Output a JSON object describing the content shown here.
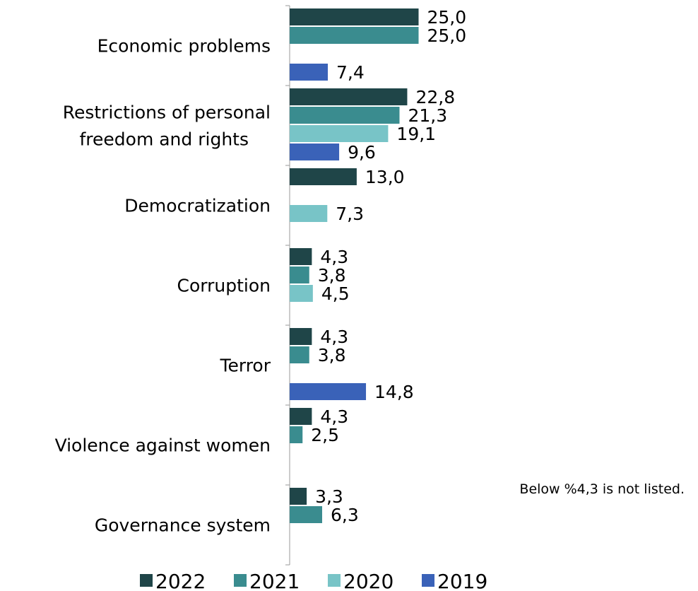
{
  "chart_data": {
    "type": "bar",
    "orientation": "horizontal",
    "categories": [
      "Economic problems",
      "Restrictions of personal freedom and rights",
      "Democratization",
      "Corruption",
      "Terror",
      "Violence against women",
      "Governance system"
    ],
    "category_lines": [
      [
        "Economic problems"
      ],
      [
        "Restrictions of personal",
        "freedom and rights"
      ],
      [
        "Democratization"
      ],
      [
        "Corruption"
      ],
      [
        "Terror"
      ],
      [
        "Violence against women"
      ],
      [
        "Governance system"
      ]
    ],
    "series": [
      {
        "name": "2022",
        "color": "#1f4548",
        "values": [
          25.0,
          22.8,
          13.0,
          4.3,
          4.3,
          4.3,
          3.3
        ],
        "labels": [
          "25,0",
          "22,8",
          "13,0",
          "4,3",
          "4,3",
          "4,3",
          "3,3"
        ]
      },
      {
        "name": "2021",
        "color": "#3a8c8f",
        "values": [
          25.0,
          21.3,
          null,
          3.8,
          3.8,
          2.5,
          6.3
        ],
        "labels": [
          "25,0",
          "21,3",
          null,
          "3,8",
          "3,8",
          "2,5",
          "6,3"
        ]
      },
      {
        "name": "2020",
        "color": "#78c4c7",
        "values": [
          null,
          19.1,
          7.3,
          4.5,
          null,
          null,
          null
        ],
        "labels": [
          null,
          "19,1",
          "7,3",
          "4,5",
          null,
          null,
          null
        ]
      },
      {
        "name": "2019",
        "color": "#3a62b8",
        "values": [
          7.4,
          9.6,
          null,
          null,
          14.8,
          null,
          null
        ],
        "labels": [
          "7,4",
          "9,6",
          null,
          null,
          "14,8",
          null,
          null
        ]
      }
    ],
    "annotation": "Below %4,3 is not listed.",
    "legend_position": "bottom",
    "grid": false,
    "xlim": [
      0,
      25
    ]
  }
}
